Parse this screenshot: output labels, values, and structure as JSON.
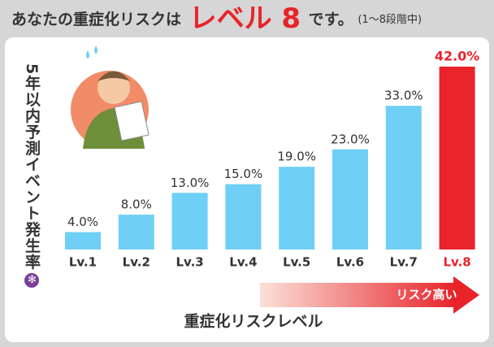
{
  "chart_data": {
    "type": "bar",
    "title_parts": [
      "あなたの重症化リスクは",
      "レベル 8",
      "です。",
      "(1〜8段階中)"
    ],
    "y_label": "5年以内予測イベント発生率",
    "y_label_mark": "✻",
    "x_label": "重症化リスクレベル",
    "arrow_label": "リスク高い",
    "categories": [
      "Lv.1",
      "Lv.2",
      "Lv.3",
      "Lv.4",
      "Lv.5",
      "Lv.6",
      "Lv.7",
      "Lv.8"
    ],
    "values": [
      4.0,
      8.0,
      13.0,
      15.0,
      19.0,
      23.0,
      33.0,
      42.0
    ],
    "value_labels": [
      "4.0%",
      "8.0%",
      "13.0%",
      "15.0%",
      "19.0%",
      "23.0%",
      "33.0%",
      "42.0%"
    ],
    "color": "#6fcff5",
    "highlight_color": "#e8242a",
    "highlight_index": 7
  }
}
